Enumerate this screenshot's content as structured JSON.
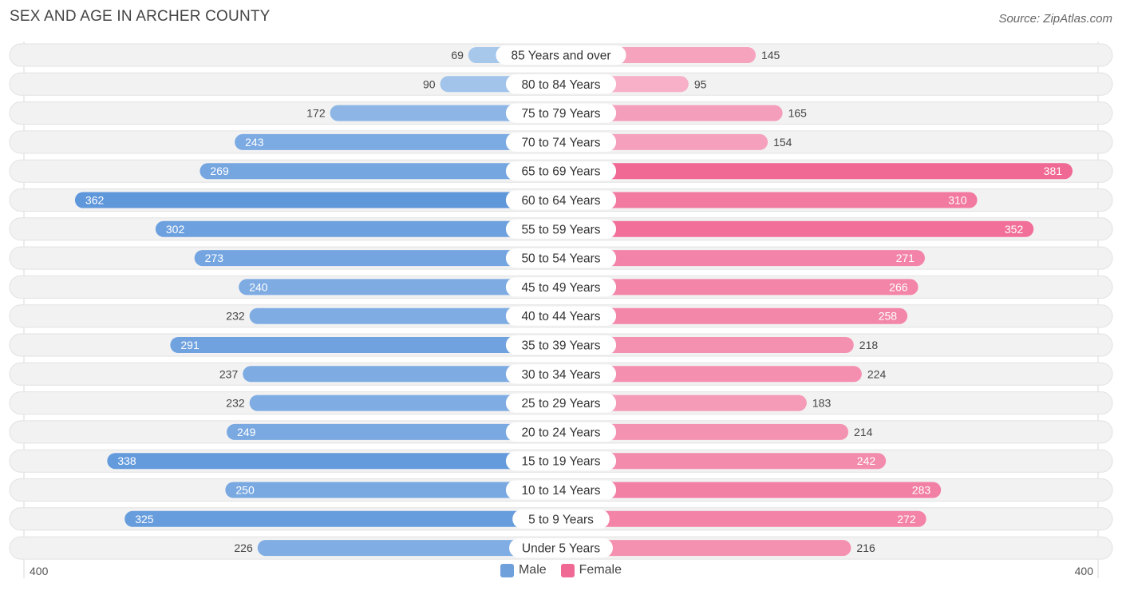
{
  "title": "SEX AND AGE IN ARCHER COUNTY",
  "source": "Source: ZipAtlas.com",
  "axis": {
    "left_label": "400",
    "right_label": "400"
  },
  "legend": [
    {
      "label": "Male",
      "color": "#6fa0dc"
    },
    {
      "label": "Female",
      "color": "#f06894"
    }
  ],
  "chart_data": {
    "type": "bar",
    "orientation": "horizontal-diverging",
    "title": "SEX AND AGE IN ARCHER COUNTY",
    "categories": [
      "85 Years and over",
      "80 to 84 Years",
      "75 to 79 Years",
      "70 to 74 Years",
      "65 to 69 Years",
      "60 to 64 Years",
      "55 to 59 Years",
      "50 to 54 Years",
      "45 to 49 Years",
      "40 to 44 Years",
      "35 to 39 Years",
      "30 to 34 Years",
      "25 to 29 Years",
      "20 to 24 Years",
      "15 to 19 Years",
      "10 to 14 Years",
      "5 to 9 Years",
      "Under 5 Years"
    ],
    "series": [
      {
        "name": "Male",
        "values": [
          69,
          90,
          172,
          243,
          269,
          362,
          302,
          273,
          240,
          232,
          291,
          237,
          232,
          249,
          338,
          250,
          325,
          226
        ]
      },
      {
        "name": "Female",
        "values": [
          145,
          95,
          165,
          154,
          381,
          310,
          352,
          271,
          266,
          258,
          218,
          224,
          183,
          214,
          242,
          283,
          272,
          216
        ]
      }
    ],
    "xlim": [
      -400,
      400
    ],
    "colors": {
      "male_light": "#a9c8ec",
      "male_dark": "#5f97db",
      "female_light": "#f7b1c8",
      "female_dark": "#f06894"
    }
  }
}
